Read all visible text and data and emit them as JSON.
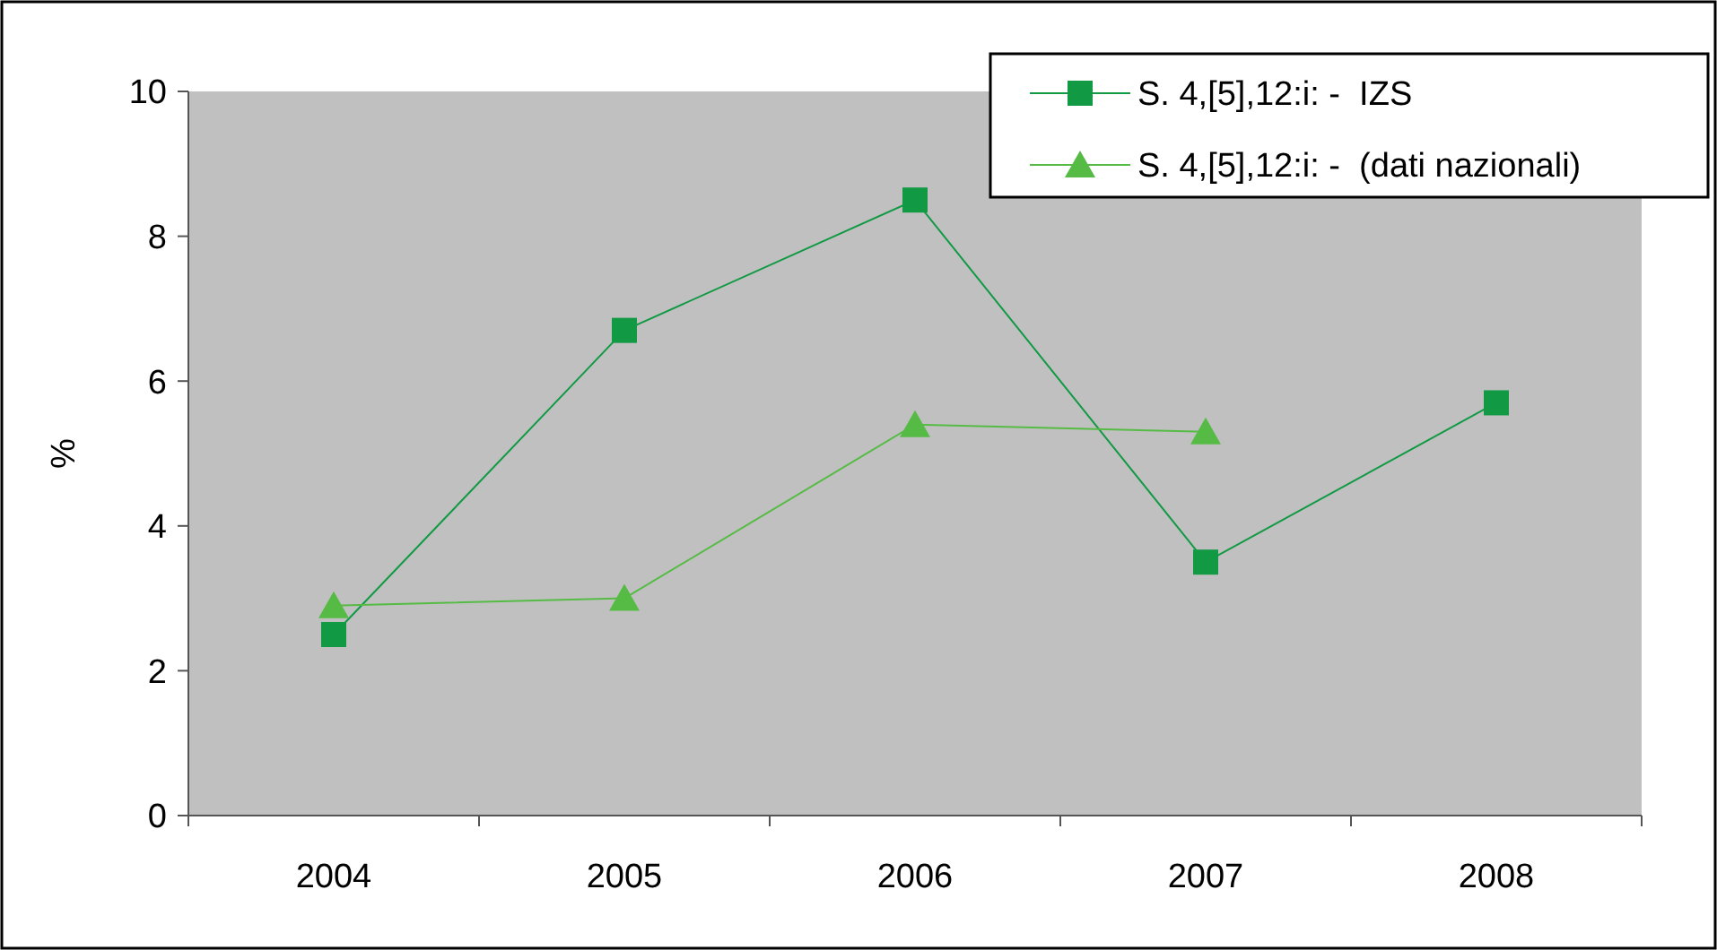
{
  "chart_data": {
    "type": "line",
    "ylabel": "%",
    "categories": [
      "2004",
      "2005",
      "2006",
      "2007",
      "2008"
    ],
    "series": [
      {
        "name": "S. 4,[5],12:i: -  IZS",
        "color": "#119944",
        "marker": "square",
        "values": [
          2.5,
          6.7,
          8.5,
          3.5,
          5.7
        ]
      },
      {
        "name": "S. 4,[5],12:i: -  (dati nazionali)",
        "color": "#55bb44",
        "marker": "triangle",
        "values": [
          2.9,
          3.0,
          5.4,
          5.3,
          null
        ]
      }
    ],
    "ylim": [
      0,
      10
    ],
    "yticks": [
      0,
      2,
      4,
      6,
      8,
      10
    ],
    "grid": false,
    "legend": "top right"
  }
}
